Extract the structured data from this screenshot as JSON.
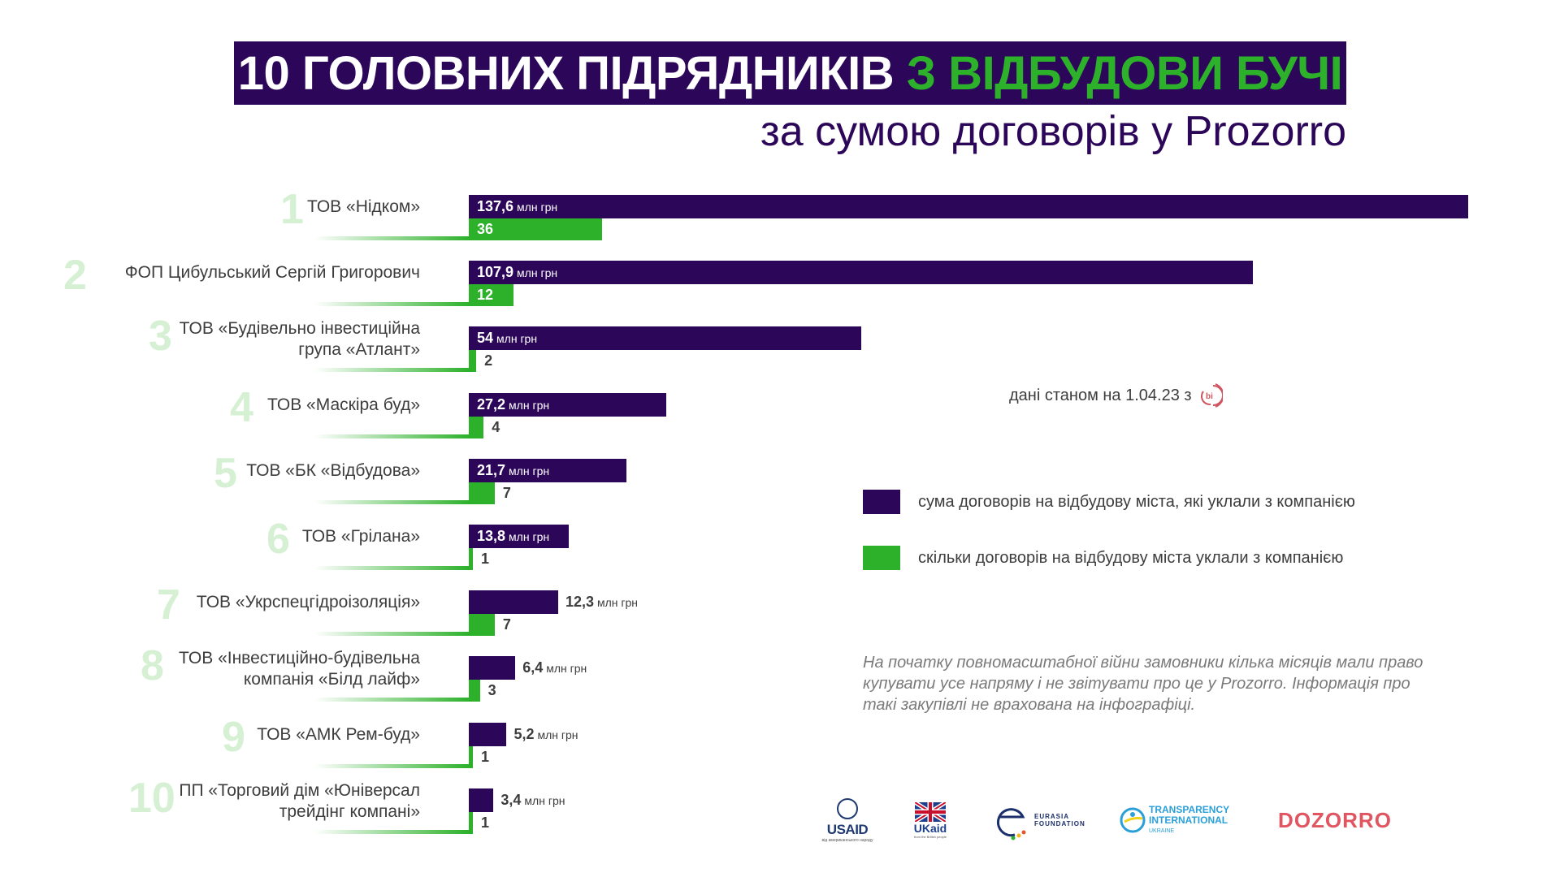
{
  "header": {
    "title_main": "10 ГОЛОВНИХ ПІДРЯДНИКІВ",
    "title_highlight": "З ВІДБУДОВИ БУЧІ",
    "subtitle": "за  сумою договорів у Prozorro"
  },
  "as_of": {
    "text": "дані станом на 1.04.23 з",
    "source_icon": "bi-logo-icon",
    "icon_text": "bi"
  },
  "legend": [
    {
      "label": "сума договорів на відбудову міста, які уклали з компанією",
      "color": "#2c0759"
    },
    {
      "label": "скільки договорів на відбудову міста уклали з компанією",
      "color": "#2db12b"
    }
  ],
  "note": "На початку повномасштабної війни замовники кілька місяців мали право купувати усе напряму і не звітувати про це у Prozorro. Інформація про такі закупівлі не врахована на інфографіці.",
  "logos": [
    {
      "name": "USAID",
      "sub": "від американського народу"
    },
    {
      "name": "UKaid",
      "sub": "from the British people"
    },
    {
      "name": "EURASIA FOUNDATION"
    },
    {
      "name": "TRANSPARENCY INTERNATIONAL",
      "sub": "UKRAINE"
    },
    {
      "name": "DOZORRO"
    }
  ],
  "colors": {
    "sum": "#2c0759",
    "count": "#2db12b",
    "rank": "#d6f0d3"
  },
  "chart_data": {
    "type": "bar",
    "orientation": "horizontal",
    "title": "10 ГОЛОВНИХ ПІДРЯДНИКІВ З ВІДБУДОВИ БУЧІ",
    "subtitle": "за  сумою договорів у Prozorro",
    "unit_label": "млн грн",
    "categories": [
      {
        "rank": "1",
        "name": [
          "ТОВ «Нідком»"
        ]
      },
      {
        "rank": "2",
        "name": [
          "ФОП Цибульський Сергій Григорович"
        ]
      },
      {
        "rank": "3",
        "name": [
          "ТОВ «Будівельно інвестиційна",
          "група «Атлант»"
        ]
      },
      {
        "rank": "4",
        "name": [
          "ТОВ «Маскіра буд»"
        ]
      },
      {
        "rank": "5",
        "name": [
          "ТОВ «БК «Відбудова»"
        ]
      },
      {
        "rank": "6",
        "name": [
          "ТОВ «Грілана»"
        ]
      },
      {
        "rank": "7",
        "name": [
          "ТОВ «Укрспецгідроізоляція»"
        ]
      },
      {
        "rank": "8",
        "name": [
          "ТОВ «Інвестиційно-будівельна",
          "компанія «Білд лайф»"
        ]
      },
      {
        "rank": "9",
        "name": [
          "ТОВ «АМК Рем-буд»"
        ]
      },
      {
        "rank": "10",
        "name": [
          "ПП «Торговий дім «Юніверсал",
          "трейдінг компані»"
        ]
      }
    ],
    "series": [
      {
        "name": "сума договорів на відбудову міста, які уклали з компанією",
        "unit": "млн грн",
        "values": [
          137.6,
          107.9,
          54,
          27.2,
          21.7,
          13.8,
          12.3,
          6.4,
          5.2,
          3.4
        ],
        "labels": [
          "137,6",
          "107,9",
          "54",
          "27,2",
          "21,7",
          "13,8",
          "12,3",
          "6,4",
          "5,2",
          "3,4"
        ]
      },
      {
        "name": "скільки договорів на відбудову міста уклали з компанією",
        "unit": "",
        "values": [
          36,
          12,
          2,
          4,
          7,
          1,
          7,
          3,
          1,
          1
        ],
        "labels": [
          "36",
          "12",
          "2",
          "4",
          "7",
          "1",
          "7",
          "3",
          "1",
          "1"
        ]
      }
    ],
    "legend_position": "right"
  }
}
